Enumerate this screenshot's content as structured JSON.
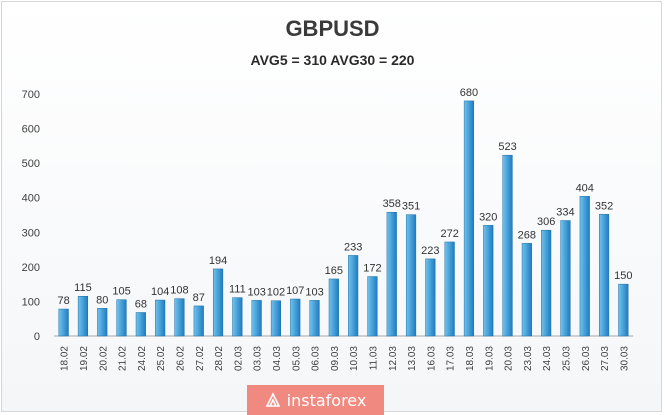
{
  "title": "GBPUSD",
  "subtitle": "AVG5 = 310 AVG30 = 220",
  "watermark": "instaforex",
  "colors": {
    "bar_top": "#6fc3ee",
    "bar_bottom": "#1f7cc0",
    "grid": "#d9d9d9",
    "text": "#404040"
  },
  "chart_data": {
    "type": "bar",
    "title": "GBPUSD",
    "subtitle": "AVG5 = 310 AVG30 = 220",
    "ylim": [
      0,
      700
    ],
    "yticks": [
      0,
      100,
      200,
      300,
      400,
      500,
      600,
      700
    ],
    "grid": false,
    "legend": "none",
    "categories": [
      "18.02",
      "19.02",
      "20.02",
      "21.02",
      "24.02",
      "25.02",
      "26.02",
      "27.02",
      "28.02",
      "02.03",
      "03.03",
      "04.03",
      "05.03",
      "06.03",
      "09.03",
      "10.03",
      "11.03",
      "12.03",
      "13.03",
      "16.03",
      "17.03",
      "18.03",
      "19.03",
      "20.03",
      "23.03",
      "24.03",
      "25.03",
      "26.03",
      "27.03",
      "30.03"
    ],
    "values": [
      78,
      115,
      80,
      105,
      68,
      104,
      108,
      87,
      194,
      111,
      103,
      102,
      107,
      103,
      165,
      233,
      172,
      358,
      351,
      223,
      272,
      680,
      320,
      523,
      268,
      306,
      334,
      404,
      352,
      150
    ],
    "labels": [
      "78",
      "115",
      "80",
      "105",
      "68",
      "104",
      "108",
      "87",
      "194",
      "111",
      "103",
      "102",
      "107",
      "103",
      "165",
      "233",
      "172",
      "358",
      "351",
      "223",
      "272",
      "680",
      "320",
      "523",
      "268",
      "306",
      "334",
      "404",
      "352",
      "150"
    ]
  }
}
